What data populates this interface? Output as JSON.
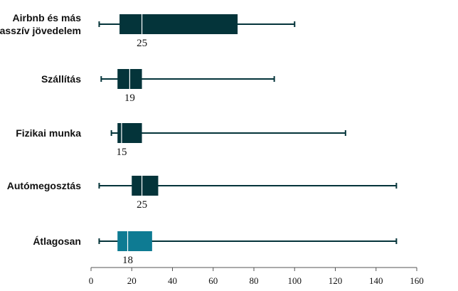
{
  "chart_data": {
    "type": "boxplot",
    "title": "",
    "xlabel": "",
    "ylabel": "",
    "xlim": [
      0,
      160
    ],
    "xticks": [
      0,
      20,
      40,
      60,
      80,
      100,
      120,
      140,
      160
    ],
    "grid": false,
    "legend": "none",
    "colors": {
      "default": "#04343a",
      "highlight": "#0e7b93",
      "whisker": "#04343a",
      "median_line": "#ffffff",
      "axis": "#555555"
    },
    "categories": [
      {
        "label_lines": [
          "Airbnb és más",
          "passzív jövedelem"
        ],
        "whisker_low": 4,
        "q1": 14,
        "median": 25,
        "q3": 72,
        "whisker_high": 100,
        "median_label": "25",
        "highlight": false
      },
      {
        "label_lines": [
          "Szállítás"
        ],
        "whisker_low": 5,
        "q1": 13,
        "median": 19,
        "q3": 25,
        "whisker_high": 90,
        "median_label": "19",
        "highlight": false
      },
      {
        "label_lines": [
          "Fizikai munka"
        ],
        "whisker_low": 10,
        "q1": 13,
        "median": 15,
        "q3": 25,
        "whisker_high": 125,
        "median_label": "15",
        "highlight": false
      },
      {
        "label_lines": [
          "Autómegosztás"
        ],
        "whisker_low": 4,
        "q1": 20,
        "median": 25,
        "q3": 33,
        "whisker_high": 150,
        "median_label": "25",
        "highlight": false
      },
      {
        "label_lines": [
          "Átlagosan"
        ],
        "whisker_low": 4,
        "q1": 13,
        "median": 18,
        "q3": 30,
        "whisker_high": 150,
        "median_label": "18",
        "highlight": true
      }
    ]
  }
}
